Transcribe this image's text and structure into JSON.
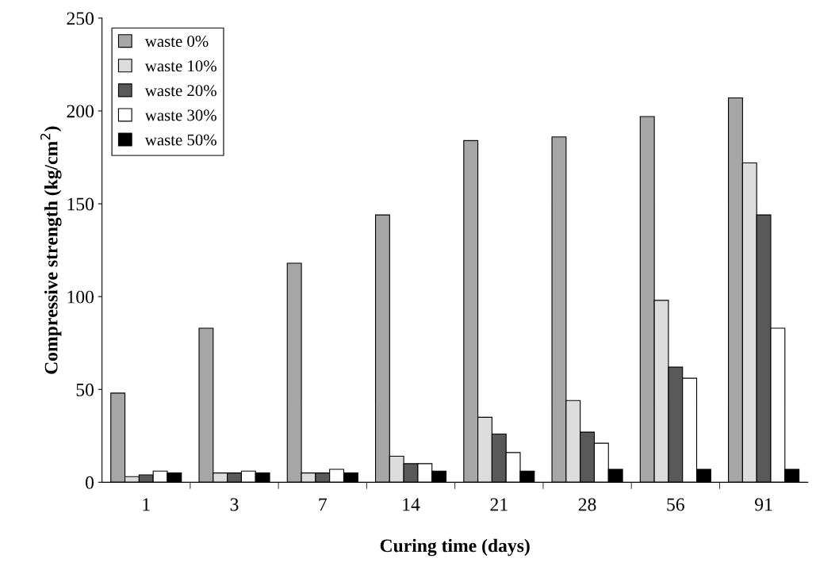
{
  "chart_data": {
    "type": "bar",
    "xlabel": "Curing time (days)",
    "ylabel": "Compressive strength (kg/cm$^{2}$)",
    "categories": [
      "1",
      "3",
      "7",
      "14",
      "21",
      "28",
      "56",
      "91"
    ],
    "series": [
      {
        "name": "waste 0%",
        "color": "#a6a6a6",
        "values": [
          48,
          83,
          118,
          144,
          184,
          186,
          197,
          207
        ]
      },
      {
        "name": "waste 10%",
        "color": "#dcdcdc",
        "values": [
          3,
          5,
          5,
          14,
          35,
          44,
          98,
          172
        ]
      },
      {
        "name": "waste 20%",
        "color": "#595959",
        "values": [
          4,
          5,
          5,
          10,
          26,
          27,
          62,
          144
        ]
      },
      {
        "name": "waste 30%",
        "color": "#ffffff",
        "values": [
          6,
          6,
          7,
          10,
          16,
          21,
          56,
          83
        ]
      },
      {
        "name": "waste 50%",
        "color": "#000000",
        "values": [
          5,
          5,
          5,
          6,
          6,
          7,
          7,
          7
        ]
      }
    ],
    "ylim": [
      0,
      250
    ],
    "yticks": [
      0,
      50,
      100,
      150,
      200,
      250
    ],
    "grid": false,
    "legend": "top left"
  }
}
